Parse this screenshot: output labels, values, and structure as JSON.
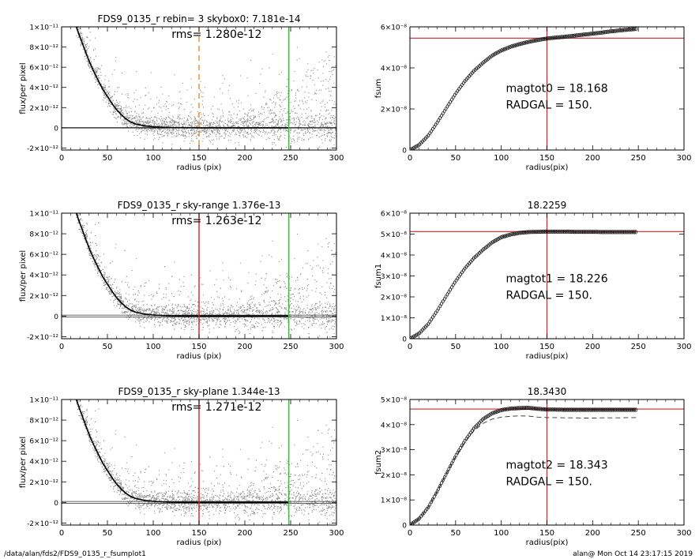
{
  "colors": {
    "scatter": "#8a8a8a",
    "profile": "#000000",
    "red": "#d92020",
    "green": "#22cc22",
    "orange": "#f08a24"
  },
  "footer": {
    "left": "/data/alan/fds2/FDS9_0135_r_fsumplot1",
    "right": "alan@  Mon Oct 14 23:17:15 2019"
  },
  "chart_data": [
    {
      "type": "scatter",
      "title": "FDS9_0135_r rebin= 3    skybox0:  7.181e-14",
      "annotation": "rms= 1.280e-12",
      "xlabel": "radius (pix)",
      "ylabel": "flux/per pixel",
      "xlim": [
        0,
        300
      ],
      "ylim": [
        -2.2e-12,
        1e-11
      ],
      "xticks": [
        "0",
        "50",
        "100",
        "150",
        "200",
        "250",
        "300"
      ],
      "yticks": [
        {
          "v": 1e-11,
          "t": "1×10⁻¹¹"
        },
        {
          "v": 8e-12,
          "t": "8×10⁻¹²"
        },
        {
          "v": 6e-12,
          "t": "6×10⁻¹²"
        },
        {
          "v": 4e-12,
          "t": "4×10⁻¹²"
        },
        {
          "v": 2e-12,
          "t": "2×10⁻¹²"
        },
        {
          "v": 0,
          "t": "0"
        },
        {
          "v": -2e-12,
          "t": "-2×10⁻¹²"
        }
      ],
      "vlines": [
        {
          "x": 150,
          "style": "orange-dashed"
        },
        {
          "x": 248,
          "style": "green"
        }
      ],
      "hline": {
        "y": 0,
        "style": "single"
      },
      "profile": {
        "x": [
          16,
          20,
          25,
          30,
          35,
          40,
          45,
          50,
          55,
          60,
          65,
          70,
          75,
          80,
          90,
          100,
          110,
          120,
          130,
          150,
          180,
          200,
          220,
          248
        ],
        "y": [
          1e-11,
          9e-12,
          7.8e-12,
          6.6e-12,
          5.6e-12,
          4.7e-12,
          3.8e-12,
          3.1e-12,
          2.4e-12,
          1.8e-12,
          1.3e-12,
          9e-13,
          6e-13,
          4e-13,
          2e-13,
          1e-13,
          5e-14,
          2e-14,
          1e-14,
          0,
          0,
          0,
          0,
          0
        ]
      }
    },
    {
      "type": "line",
      "title": "",
      "xlabel": "radius(pix)",
      "ylabel": "fsum",
      "xlim": [
        0,
        300
      ],
      "ylim": [
        0,
        6e-08
      ],
      "xticks": [
        "0",
        "50",
        "100",
        "150",
        "200",
        "250",
        "300"
      ],
      "yticks": [
        {
          "v": 6e-08,
          "t": "6×10⁻⁸"
        },
        {
          "v": 4e-08,
          "t": "4×10⁻⁸"
        },
        {
          "v": 2e-08,
          "t": "2×10⁻⁸"
        },
        {
          "v": 0,
          "t": "0"
        }
      ],
      "hline": {
        "y": 5.45e-08
      },
      "vline": {
        "x": 150
      },
      "labels": [
        "magtot0 = 18.168",
        "RADGAL =    150."
      ],
      "curve": {
        "x": [
          0,
          10,
          20,
          30,
          40,
          50,
          60,
          70,
          80,
          90,
          100,
          110,
          120,
          130,
          140,
          150,
          160,
          170,
          180,
          190,
          200,
          210,
          220,
          230,
          240,
          248
        ],
        "y": [
          0,
          2.5e-09,
          7e-09,
          1.35e-08,
          2.05e-08,
          2.75e-08,
          3.35e-08,
          3.85e-08,
          4.25e-08,
          4.6e-08,
          4.85e-08,
          5.03e-08,
          5.16e-08,
          5.27e-08,
          5.36e-08,
          5.43e-08,
          5.48e-08,
          5.52e-08,
          5.57e-08,
          5.62e-08,
          5.67e-08,
          5.72e-08,
          5.78e-08,
          5.83e-08,
          5.87e-08,
          5.9e-08
        ]
      }
    },
    {
      "type": "scatter",
      "title": "FDS9_0135_r sky-range  1.376e-13",
      "annotation": "rms= 1.263e-12",
      "xlabel": "radius (pix)",
      "ylabel": "flux/per pixel",
      "xlim": [
        0,
        300
      ],
      "ylim": [
        -2.2e-12,
        1e-11
      ],
      "xticks": [
        "0",
        "50",
        "100",
        "150",
        "200",
        "250",
        "300"
      ],
      "yticks": [
        {
          "v": 1e-11,
          "t": "1×10⁻¹¹"
        },
        {
          "v": 8e-12,
          "t": "8×10⁻¹²"
        },
        {
          "v": 6e-12,
          "t": "6×10⁻¹²"
        },
        {
          "v": 4e-12,
          "t": "4×10⁻¹²"
        },
        {
          "v": 2e-12,
          "t": "2×10⁻¹²"
        },
        {
          "v": 0,
          "t": "0"
        },
        {
          "v": -2e-12,
          "t": "-2×10⁻¹²"
        }
      ],
      "vlines": [
        {
          "x": 150,
          "style": "red"
        },
        {
          "x": 248,
          "style": "green"
        }
      ],
      "hline": {
        "y": 0,
        "style": "double"
      },
      "profile": {
        "x": [
          16,
          20,
          25,
          30,
          35,
          40,
          45,
          50,
          55,
          60,
          65,
          70,
          75,
          80,
          90,
          100,
          110,
          120,
          130,
          150,
          180,
          200,
          220,
          248
        ],
        "y": [
          1e-11,
          9e-12,
          7.8e-12,
          6.6e-12,
          5.6e-12,
          4.7e-12,
          3.8e-12,
          3.1e-12,
          2.4e-12,
          1.8e-12,
          1.3e-12,
          9e-13,
          6e-13,
          4e-13,
          2e-13,
          1e-13,
          5e-14,
          2e-14,
          1e-14,
          0,
          0,
          0,
          0,
          0
        ]
      }
    },
    {
      "type": "line",
      "title": "18.2259",
      "xlabel": "radius(pix)",
      "ylabel": "fsum1",
      "xlim": [
        0,
        300
      ],
      "ylim": [
        0,
        6e-08
      ],
      "xticks": [
        "0",
        "50",
        "100",
        "150",
        "200",
        "250",
        "300"
      ],
      "yticks": [
        {
          "v": 6e-08,
          "t": "6×10⁻⁸"
        },
        {
          "v": 5e-08,
          "t": "5×10⁻⁸"
        },
        {
          "v": 4e-08,
          "t": "4×10⁻⁸"
        },
        {
          "v": 3e-08,
          "t": "3×10⁻⁸"
        },
        {
          "v": 2e-08,
          "t": "2×10⁻⁸"
        },
        {
          "v": 1e-08,
          "t": "1×10⁻⁸"
        },
        {
          "v": 0,
          "t": "0"
        }
      ],
      "hline": {
        "y": 5.12e-08
      },
      "vline": {
        "x": 150
      },
      "labels": [
        "magtot1 = 18.226",
        "RADGAL =    150."
      ],
      "curve": {
        "x": [
          0,
          10,
          20,
          30,
          40,
          50,
          60,
          70,
          80,
          90,
          100,
          110,
          120,
          130,
          140,
          150,
          160,
          170,
          180,
          190,
          200,
          210,
          220,
          230,
          240,
          248
        ],
        "y": [
          0,
          2.5e-09,
          7e-09,
          1.35e-08,
          2.05e-08,
          2.75e-08,
          3.35e-08,
          3.85e-08,
          4.25e-08,
          4.6e-08,
          4.85e-08,
          4.98e-08,
          5.06e-08,
          5.1e-08,
          5.11e-08,
          5.12e-08,
          5.12e-08,
          5.12e-08,
          5.11e-08,
          5.11e-08,
          5.11e-08,
          5.1e-08,
          5.1e-08,
          5.1e-08,
          5.1e-08,
          5.1e-08
        ]
      }
    },
    {
      "type": "scatter",
      "title": "FDS9_0135_r sky-plane  1.344e-13",
      "annotation": "rms= 1.271e-12",
      "xlabel": "radius (pix)",
      "ylabel": "flux/per pixel",
      "xlim": [
        0,
        300
      ],
      "ylim": [
        -2.2e-12,
        1e-11
      ],
      "xticks": [
        "0",
        "50",
        "100",
        "150",
        "200",
        "250",
        "300"
      ],
      "yticks": [
        {
          "v": 1e-11,
          "t": "1×10⁻¹¹"
        },
        {
          "v": 8e-12,
          "t": "8×10⁻¹²"
        },
        {
          "v": 6e-12,
          "t": "6×10⁻¹²"
        },
        {
          "v": 4e-12,
          "t": "4×10⁻¹²"
        },
        {
          "v": 2e-12,
          "t": "2×10⁻¹²"
        },
        {
          "v": 0,
          "t": "0"
        },
        {
          "v": -2e-12,
          "t": "-2×10⁻¹²"
        }
      ],
      "vlines": [
        {
          "x": 150,
          "style": "red"
        },
        {
          "x": 248,
          "style": "green"
        }
      ],
      "hline": {
        "y": 0,
        "style": "double"
      },
      "profile": {
        "x": [
          16,
          20,
          25,
          30,
          35,
          40,
          45,
          50,
          55,
          60,
          65,
          70,
          75,
          80,
          90,
          100,
          110,
          120,
          130,
          150,
          180,
          200,
          220,
          248
        ],
        "y": [
          1e-11,
          9e-12,
          7.8e-12,
          6.6e-12,
          5.6e-12,
          4.7e-12,
          3.8e-12,
          3.1e-12,
          2.4e-12,
          1.8e-12,
          1.3e-12,
          9e-13,
          6e-13,
          4e-13,
          2e-13,
          1e-13,
          5e-14,
          2e-14,
          1e-14,
          0,
          0,
          0,
          0,
          0
        ]
      }
    },
    {
      "type": "line",
      "title": "18.3430",
      "xlabel": "radius(pix)",
      "ylabel": "fsum2",
      "xlim": [
        0,
        300
      ],
      "ylim": [
        0,
        5e-08
      ],
      "xticks": [
        "0",
        "50",
        "100",
        "150",
        "200",
        "250",
        "300"
      ],
      "yticks": [
        {
          "v": 5e-08,
          "t": "5×10⁻⁸"
        },
        {
          "v": 4e-08,
          "t": "4×10⁻⁸"
        },
        {
          "v": 3e-08,
          "t": "3×10⁻⁸"
        },
        {
          "v": 2e-08,
          "t": "2×10⁻⁸"
        },
        {
          "v": 1e-08,
          "t": "1×10⁻⁸"
        },
        {
          "v": 0,
          "t": "0"
        }
      ],
      "hline": {
        "y": 4.62e-08
      },
      "vline": {
        "x": 150
      },
      "labels": [
        "magtot2 = 18.343",
        "RADGAL =    150."
      ],
      "curve": {
        "x": [
          0,
          10,
          20,
          30,
          40,
          50,
          60,
          70,
          80,
          90,
          100,
          110,
          120,
          130,
          140,
          150,
          160,
          170,
          180,
          190,
          200,
          210,
          220,
          230,
          240,
          248
        ],
        "y": [
          0,
          2.5e-09,
          7e-09,
          1.35e-08,
          2.05e-08,
          2.75e-08,
          3.35e-08,
          3.85e-08,
          4.22e-08,
          4.45e-08,
          4.58e-08,
          4.64e-08,
          4.66e-08,
          4.67e-08,
          4.63e-08,
          4.6e-08,
          4.6e-08,
          4.59e-08,
          4.59e-08,
          4.59e-08,
          4.59e-08,
          4.59e-08,
          4.59e-08,
          4.59e-08,
          4.59e-08,
          4.59e-08
        ]
      },
      "dashed_curve": {
        "x": [
          0,
          10,
          20,
          30,
          40,
          50,
          60,
          70,
          80,
          90,
          100,
          110,
          120,
          130,
          140,
          150,
          160,
          170,
          180,
          190,
          200,
          210,
          220,
          230,
          240,
          248
        ],
        "y": [
          0,
          2.5e-09,
          7e-09,
          1.35e-08,
          2.05e-08,
          2.72e-08,
          3.3e-08,
          3.75e-08,
          4.05e-08,
          4.22e-08,
          4.3e-08,
          4.33e-08,
          4.35e-08,
          4.34e-08,
          4.3e-08,
          4.28e-08,
          4.28e-08,
          4.27e-08,
          4.27e-08,
          4.26e-08,
          4.26e-08,
          4.27e-08,
          4.27e-08,
          4.27e-08,
          4.28e-08,
          4.28e-08
        ]
      }
    }
  ]
}
